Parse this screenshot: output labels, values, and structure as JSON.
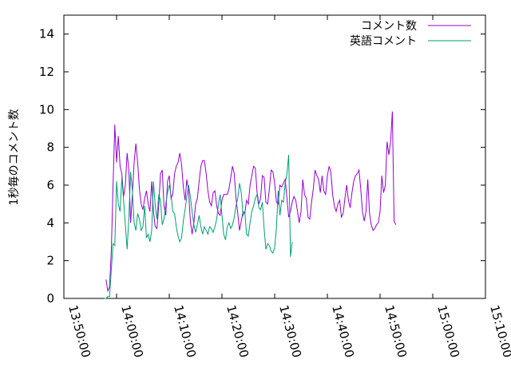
{
  "chart_data": {
    "type": "line",
    "title": "",
    "xlabel": "",
    "ylabel": "1秒毎のコメント数",
    "x_ticks": [
      "13:50:00",
      "14:00:00",
      "14:10:00",
      "14:20:00",
      "14:30:00",
      "14:40:00",
      "14:50:00",
      "15:00:00",
      "15:10:00"
    ],
    "xlim": [
      "13:50:00",
      "15:10:00"
    ],
    "y_ticks": [
      0,
      2,
      4,
      6,
      8,
      10,
      12,
      14
    ],
    "ylim": [
      0,
      15
    ],
    "grid": false,
    "legend_position": "top-right",
    "series": [
      {
        "name": "コメント数",
        "color": "#9400d3",
        "points": [
          [
            "13:58:00",
            1.0
          ],
          [
            "13:58:20",
            0.4
          ],
          [
            "13:58:40",
            0.6
          ],
          [
            "13:59:00",
            2.5
          ],
          [
            "13:59:20",
            6.0
          ],
          [
            "13:59:40",
            9.2
          ],
          [
            "14:00:00",
            7.2
          ],
          [
            "14:00:20",
            8.6
          ],
          [
            "14:00:40",
            7.0
          ],
          [
            "14:01:00",
            6.6
          ],
          [
            "14:01:20",
            5.4
          ],
          [
            "14:01:40",
            6.0
          ],
          [
            "14:02:00",
            7.7
          ],
          [
            "14:02:20",
            6.8
          ],
          [
            "14:02:40",
            4.0
          ],
          [
            "14:03:00",
            5.5
          ],
          [
            "14:03:20",
            7.2
          ],
          [
            "14:03:40",
            8.2
          ],
          [
            "14:04:00",
            7.2
          ],
          [
            "14:04:20",
            5.8
          ],
          [
            "14:04:40",
            5.0
          ],
          [
            "14:05:00",
            4.7
          ],
          [
            "14:05:20",
            5.3
          ],
          [
            "14:05:40",
            5.7
          ],
          [
            "14:06:00",
            5.0
          ],
          [
            "14:06:20",
            4.6
          ],
          [
            "14:06:40",
            6.2
          ],
          [
            "14:07:00",
            4.6
          ],
          [
            "14:07:20",
            3.8
          ],
          [
            "14:07:40",
            3.7
          ],
          [
            "14:08:00",
            4.9
          ],
          [
            "14:08:20",
            6.6
          ],
          [
            "14:08:40",
            6.8
          ],
          [
            "14:09:00",
            4.9
          ],
          [
            "14:09:20",
            4.4
          ],
          [
            "14:09:40",
            6.2
          ],
          [
            "14:10:00",
            6.5
          ],
          [
            "14:10:20",
            5.3
          ],
          [
            "14:10:40",
            5.5
          ],
          [
            "14:11:00",
            6.6
          ],
          [
            "14:11:20",
            7.0
          ],
          [
            "14:11:40",
            7.2
          ],
          [
            "14:12:00",
            7.7
          ],
          [
            "14:12:20",
            7.1
          ],
          [
            "14:12:40",
            5.9
          ],
          [
            "14:13:00",
            5.2
          ],
          [
            "14:13:20",
            6.3
          ],
          [
            "14:13:40",
            5.7
          ],
          [
            "14:14:00",
            4.1
          ],
          [
            "14:14:20",
            3.4
          ],
          [
            "14:14:40",
            4.0
          ],
          [
            "14:15:00",
            5.0
          ],
          [
            "14:15:20",
            5.3
          ],
          [
            "14:15:40",
            6.2
          ],
          [
            "14:16:00",
            7.0
          ],
          [
            "14:16:20",
            7.3
          ],
          [
            "14:16:40",
            7.3
          ],
          [
            "14:17:00",
            6.6
          ],
          [
            "14:17:20",
            5.7
          ],
          [
            "14:17:40",
            5.1
          ],
          [
            "14:18:00",
            4.9
          ],
          [
            "14:18:20",
            5.6
          ],
          [
            "14:18:40",
            5.7
          ],
          [
            "14:19:00",
            4.9
          ],
          [
            "14:19:20",
            4.5
          ],
          [
            "14:19:40",
            4.4
          ],
          [
            "14:20:00",
            5.2
          ],
          [
            "14:20:20",
            5.5
          ],
          [
            "14:20:40",
            5.5
          ],
          [
            "14:21:00",
            5.5
          ],
          [
            "14:21:20",
            5.8
          ],
          [
            "14:21:40",
            6.4
          ],
          [
            "14:22:00",
            7.0
          ],
          [
            "14:22:20",
            6.6
          ],
          [
            "14:22:40",
            5.3
          ],
          [
            "14:23:00",
            4.5
          ],
          [
            "14:23:20",
            3.6
          ],
          [
            "14:23:40",
            4.1
          ],
          [
            "14:24:00",
            4.6
          ],
          [
            "14:24:20",
            4.5
          ],
          [
            "14:24:40",
            5.2
          ],
          [
            "14:25:00",
            5.0
          ],
          [
            "14:25:20",
            6.0
          ],
          [
            "14:25:40",
            6.5
          ],
          [
            "14:26:00",
            7.0
          ],
          [
            "14:26:20",
            6.9
          ],
          [
            "14:26:40",
            5.6
          ],
          [
            "14:27:00",
            5.0
          ],
          [
            "14:27:20",
            5.3
          ],
          [
            "14:27:40",
            6.5
          ],
          [
            "14:28:00",
            6.4
          ],
          [
            "14:28:20",
            5.1
          ],
          [
            "14:28:40",
            5.0
          ],
          [
            "14:29:00",
            5.8
          ],
          [
            "14:29:20",
            6.8
          ],
          [
            "14:29:40",
            6.7
          ],
          [
            "14:30:00",
            6.1
          ],
          [
            "14:30:20",
            5.1
          ],
          [
            "14:30:40",
            5.0
          ],
          [
            "14:31:00",
            6.0
          ],
          [
            "14:31:20",
            5.9
          ],
          [
            "14:31:40",
            6.1
          ],
          [
            "14:32:00",
            6.3
          ],
          [
            "14:32:20",
            5.3
          ],
          [
            "14:32:40",
            4.3
          ],
          [
            "14:33:00",
            4.6
          ],
          [
            "14:33:20",
            5.1
          ],
          [
            "14:33:40",
            5.4
          ],
          [
            "14:34:00",
            5.2
          ],
          [
            "14:34:20",
            4.6
          ],
          [
            "14:34:40",
            4.0
          ],
          [
            "14:35:00",
            4.6
          ],
          [
            "14:35:20",
            6.3
          ],
          [
            "14:35:40",
            5.5
          ],
          [
            "14:36:00",
            5.3
          ],
          [
            "14:36:20",
            4.3
          ],
          [
            "14:36:40",
            4.2
          ],
          [
            "14:37:00",
            5.1
          ],
          [
            "14:37:20",
            5.8
          ],
          [
            "14:37:40",
            6.8
          ],
          [
            "14:38:00",
            6.5
          ],
          [
            "14:38:20",
            6.3
          ],
          [
            "14:38:40",
            5.6
          ],
          [
            "14:39:00",
            6.5
          ],
          [
            "14:39:20",
            5.7
          ],
          [
            "14:39:40",
            5.5
          ],
          [
            "14:40:00",
            6.5
          ],
          [
            "14:40:20",
            7.0
          ],
          [
            "14:40:40",
            6.7
          ],
          [
            "14:41:00",
            5.5
          ],
          [
            "14:41:20",
            4.9
          ],
          [
            "14:41:40",
            4.6
          ],
          [
            "14:42:00",
            5.0
          ],
          [
            "14:42:20",
            5.2
          ],
          [
            "14:42:40",
            4.3
          ],
          [
            "14:43:00",
            4.5
          ],
          [
            "14:43:20",
            5.3
          ],
          [
            "14:43:40",
            6.0
          ],
          [
            "14:44:00",
            5.2
          ],
          [
            "14:44:20",
            4.8
          ],
          [
            "14:44:40",
            5.6
          ],
          [
            "14:45:00",
            6.2
          ],
          [
            "14:45:20",
            6.5
          ],
          [
            "14:45:40",
            6.6
          ],
          [
            "14:46:00",
            6.8
          ],
          [
            "14:46:20",
            5.8
          ],
          [
            "14:46:40",
            4.6
          ],
          [
            "14:47:00",
            4.1
          ],
          [
            "14:47:20",
            4.6
          ],
          [
            "14:47:40",
            6.3
          ],
          [
            "14:48:00",
            4.5
          ],
          [
            "14:48:20",
            3.9
          ],
          [
            "14:48:40",
            3.6
          ],
          [
            "14:49:00",
            3.7
          ],
          [
            "14:49:20",
            3.9
          ],
          [
            "14:49:40",
            4.0
          ],
          [
            "14:50:00",
            4.6
          ],
          [
            "14:50:20",
            6.5
          ],
          [
            "14:50:40",
            5.6
          ],
          [
            "14:51:00",
            6.0
          ],
          [
            "14:51:20",
            8.3
          ],
          [
            "14:51:40",
            7.6
          ],
          [
            "14:52:00",
            8.3
          ],
          [
            "14:52:20",
            9.9
          ],
          [
            "14:52:40",
            4.1
          ],
          [
            "14:53:00",
            3.9
          ]
        ]
      },
      {
        "name": "英語コメント",
        "color": "#009e73",
        "points": [
          [
            "13:57:40",
            0.0
          ],
          [
            "13:58:00",
            0.0
          ],
          [
            "13:58:20",
            0.1
          ],
          [
            "13:58:40",
            0.1
          ],
          [
            "13:59:00",
            1.5
          ],
          [
            "13:59:20",
            2.9
          ],
          [
            "13:59:40",
            2.8
          ],
          [
            "14:00:00",
            6.2
          ],
          [
            "14:00:20",
            5.0
          ],
          [
            "14:00:40",
            4.6
          ],
          [
            "14:01:00",
            6.4
          ],
          [
            "14:01:20",
            5.2
          ],
          [
            "14:01:40",
            3.9
          ],
          [
            "14:02:00",
            2.6
          ],
          [
            "14:02:20",
            4.3
          ],
          [
            "14:02:40",
            6.7
          ],
          [
            "14:03:00",
            5.7
          ],
          [
            "14:03:20",
            4.0
          ],
          [
            "14:03:40",
            3.6
          ],
          [
            "14:04:00",
            4.5
          ],
          [
            "14:04:20",
            4.2
          ],
          [
            "14:04:40",
            3.6
          ],
          [
            "14:05:00",
            3.8
          ],
          [
            "14:05:20",
            4.9
          ],
          [
            "14:05:40",
            3.2
          ],
          [
            "14:06:00",
            3.4
          ],
          [
            "14:06:20",
            3.0
          ],
          [
            "14:06:40",
            3.6
          ],
          [
            "14:07:00",
            6.2
          ],
          [
            "14:07:20",
            4.9
          ],
          [
            "14:07:40",
            4.2
          ],
          [
            "14:08:00",
            5.5
          ],
          [
            "14:08:20",
            5.2
          ],
          [
            "14:08:40",
            3.9
          ],
          [
            "14:09:00",
            4.2
          ],
          [
            "14:09:20",
            5.0
          ],
          [
            "14:09:40",
            5.6
          ],
          [
            "14:10:00",
            6.0
          ],
          [
            "14:10:20",
            5.5
          ],
          [
            "14:10:40",
            4.6
          ],
          [
            "14:11:00",
            4.5
          ],
          [
            "14:11:20",
            3.8
          ],
          [
            "14:11:40",
            3.3
          ],
          [
            "14:12:00",
            3.0
          ],
          [
            "14:12:20",
            3.2
          ],
          [
            "14:12:40",
            4.1
          ],
          [
            "14:13:00",
            4.7
          ],
          [
            "14:13:20",
            5.4
          ],
          [
            "14:13:40",
            6.0
          ],
          [
            "14:14:00",
            5.4
          ],
          [
            "14:14:20",
            4.6
          ],
          [
            "14:14:40",
            3.9
          ],
          [
            "14:15:00",
            3.5
          ],
          [
            "14:15:20",
            3.9
          ],
          [
            "14:15:40",
            4.4
          ],
          [
            "14:16:00",
            3.8
          ],
          [
            "14:16:20",
            3.4
          ],
          [
            "14:16:40",
            3.8
          ],
          [
            "14:17:00",
            3.6
          ],
          [
            "14:17:20",
            3.4
          ],
          [
            "14:17:40",
            3.8
          ],
          [
            "14:18:00",
            3.7
          ],
          [
            "14:18:20",
            3.5
          ],
          [
            "14:18:40",
            3.8
          ],
          [
            "14:19:00",
            4.2
          ],
          [
            "14:19:20",
            5.0
          ],
          [
            "14:19:40",
            5.5
          ],
          [
            "14:20:00",
            4.4
          ],
          [
            "14:20:20",
            3.4
          ],
          [
            "14:20:40",
            3.1
          ],
          [
            "14:21:00",
            3.8
          ],
          [
            "14:21:20",
            4.0
          ],
          [
            "14:21:40",
            3.7
          ],
          [
            "14:22:00",
            3.9
          ],
          [
            "14:22:20",
            4.3
          ],
          [
            "14:22:40",
            4.9
          ],
          [
            "14:23:00",
            5.3
          ],
          [
            "14:23:20",
            6.1
          ],
          [
            "14:23:40",
            5.6
          ],
          [
            "14:24:00",
            4.4
          ],
          [
            "14:24:20",
            4.6
          ],
          [
            "14:24:40",
            3.4
          ],
          [
            "14:25:00",
            3.3
          ],
          [
            "14:25:20",
            4.0
          ],
          [
            "14:25:40",
            4.6
          ],
          [
            "14:26:00",
            4.9
          ],
          [
            "14:26:20",
            5.3
          ],
          [
            "14:26:40",
            5.5
          ],
          [
            "14:27:00",
            4.8
          ],
          [
            "14:27:20",
            4.7
          ],
          [
            "14:27:40",
            5.1
          ],
          [
            "14:28:00",
            3.7
          ],
          [
            "14:28:20",
            2.6
          ],
          [
            "14:28:40",
            2.9
          ],
          [
            "14:29:00",
            2.8
          ],
          [
            "14:29:20",
            2.5
          ],
          [
            "14:29:40",
            2.4
          ],
          [
            "14:30:00",
            2.7
          ],
          [
            "14:30:20",
            3.7
          ],
          [
            "14:30:40",
            5.7
          ],
          [
            "14:31:00",
            4.4
          ],
          [
            "14:31:20",
            5.2
          ],
          [
            "14:31:40",
            5.1
          ],
          [
            "14:32:00",
            6.1
          ],
          [
            "14:32:20",
            6.6
          ],
          [
            "14:32:40",
            7.6
          ],
          [
            "14:33:00",
            2.2
          ],
          [
            "14:33:20",
            3.0
          ]
        ]
      }
    ]
  }
}
